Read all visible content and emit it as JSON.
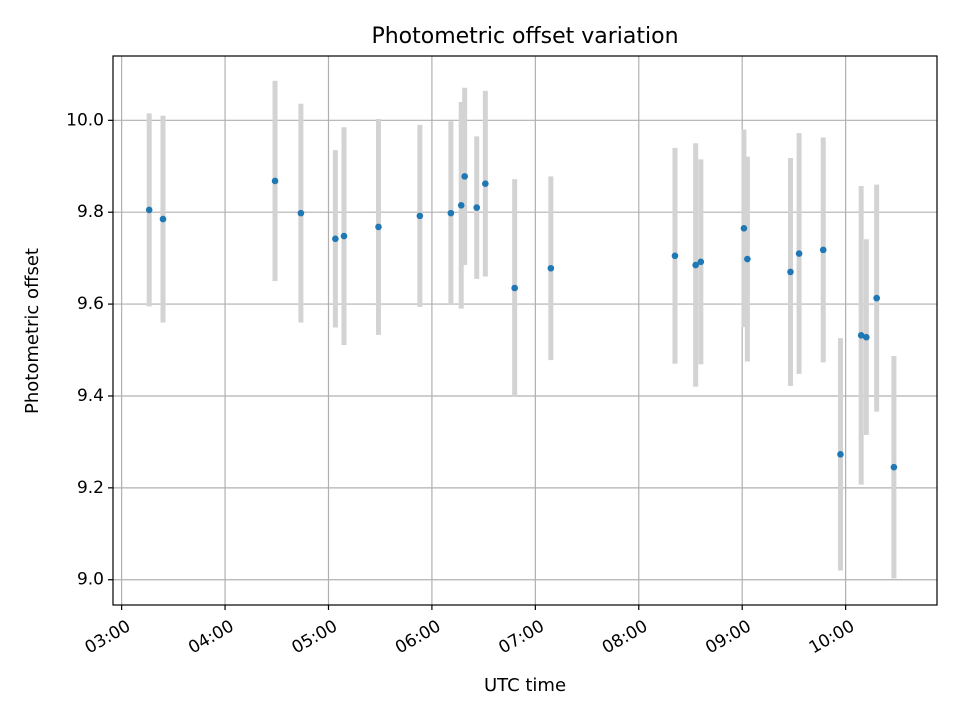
{
  "chart_data": {
    "type": "scatter",
    "title": "Photometric offset variation",
    "xlabel": "UTC time",
    "ylabel": "Photometric offset",
    "x_tick_labels": [
      "03:00",
      "04:00",
      "05:00",
      "06:00",
      "07:00",
      "08:00",
      "09:00",
      "10:00"
    ],
    "y_tick_labels": [
      "9.0",
      "9.2",
      "9.4",
      "9.6",
      "9.8",
      "10.0"
    ],
    "y_ticks": [
      9.0,
      9.2,
      9.4,
      9.6,
      9.8,
      10.0
    ],
    "xlim": [
      "02:55",
      "10:53"
    ],
    "ylim": [
      8.945,
      10.14
    ],
    "grid": true,
    "point_color": "#1f77b4",
    "errorbar_color": "#d3d3d3",
    "points": [
      {
        "x": "03:16",
        "y": 9.805,
        "err": 0.21
      },
      {
        "x": "03:24",
        "y": 9.785,
        "err": 0.225
      },
      {
        "x": "04:29",
        "y": 9.868,
        "err": 0.218
      },
      {
        "x": "04:44",
        "y": 9.798,
        "err": 0.238
      },
      {
        "x": "05:04",
        "y": 9.742,
        "err": 0.193
      },
      {
        "x": "05:09",
        "y": 9.748,
        "err": 0.237
      },
      {
        "x": "05:29",
        "y": 9.768,
        "err": 0.235
      },
      {
        "x": "05:53",
        "y": 9.792,
        "err": 0.198
      },
      {
        "x": "06:11",
        "y": 9.798,
        "err": 0.2
      },
      {
        "x": "06:17",
        "y": 9.815,
        "err": 0.225
      },
      {
        "x": "06:19",
        "y": 9.878,
        "err": 0.193
      },
      {
        "x": "06:26",
        "y": 9.81,
        "err": 0.155
      },
      {
        "x": "06:31",
        "y": 9.862,
        "err": 0.202
      },
      {
        "x": "06:48",
        "y": 9.635,
        "err": 0.237
      },
      {
        "x": "07:09",
        "y": 9.678,
        "err": 0.2
      },
      {
        "x": "08:21",
        "y": 9.705,
        "err": 0.235
      },
      {
        "x": "08:33",
        "y": 9.685,
        "err": 0.265
      },
      {
        "x": "08:36",
        "y": 9.692,
        "err": 0.223
      },
      {
        "x": "09:01",
        "y": 9.765,
        "err": 0.215
      },
      {
        "x": "09:03",
        "y": 9.698,
        "err": 0.223
      },
      {
        "x": "09:28",
        "y": 9.67,
        "err": 0.248
      },
      {
        "x": "09:33",
        "y": 9.71,
        "err": 0.262
      },
      {
        "x": "09:47",
        "y": 9.718,
        "err": 0.245
      },
      {
        "x": "09:57",
        "y": 9.273,
        "err": 0.253
      },
      {
        "x": "10:09",
        "y": 9.532,
        "err": 0.325
      },
      {
        "x": "10:12",
        "y": 9.528,
        "err": 0.213
      },
      {
        "x": "10:18",
        "y": 9.613,
        "err": 0.247
      },
      {
        "x": "10:28",
        "y": 9.245,
        "err": 0.242
      }
    ]
  }
}
